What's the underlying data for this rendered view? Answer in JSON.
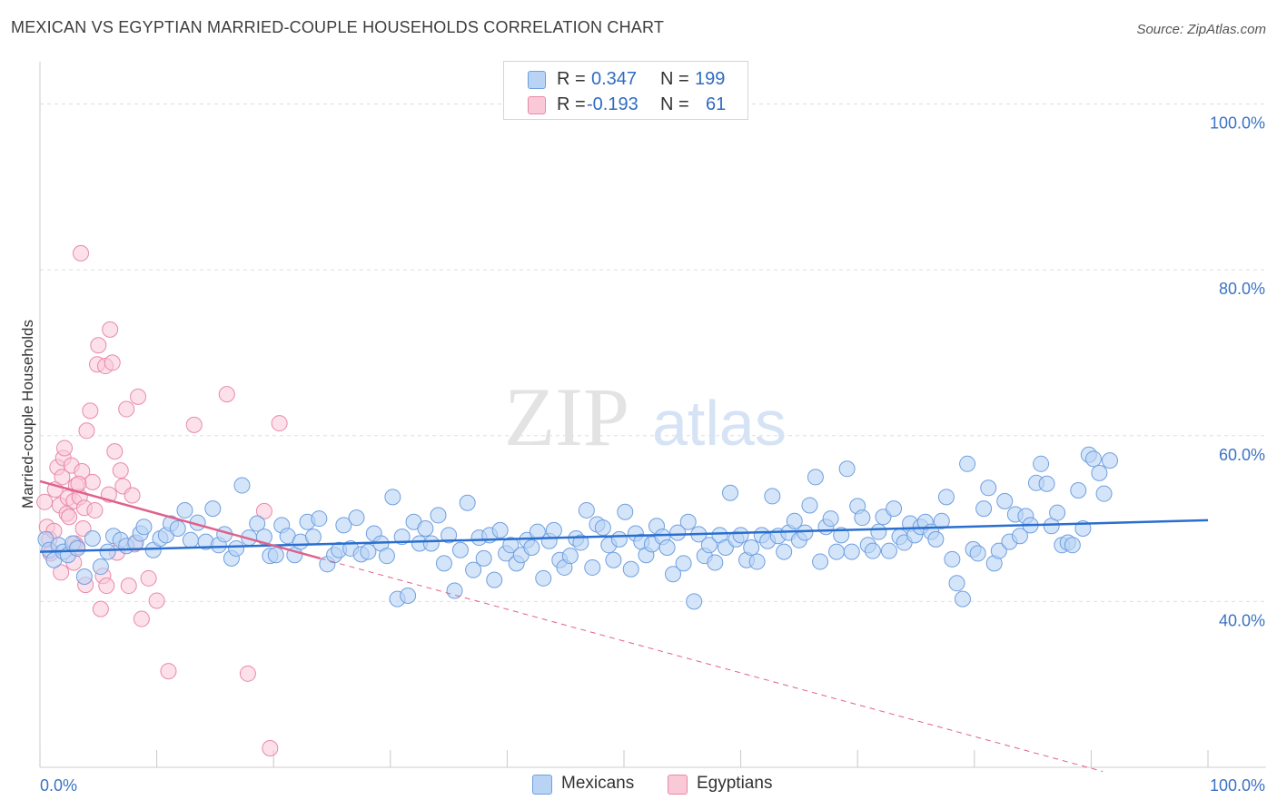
{
  "title": "MEXICAN VS EGYPTIAN MARRIED-COUPLE HOUSEHOLDS CORRELATION CHART",
  "source": "Source: ZipAtlas.com",
  "watermark": {
    "zip": "ZIP",
    "atlas": "atlas"
  },
  "colors": {
    "blue": "#6f9fe0",
    "blue_fill": "#b9d3f5",
    "blue_line": "#2a6fcf",
    "pink": "#e98aa8",
    "pink_fill": "#f9c9d8",
    "pink_line": "#e0628b",
    "grid": "#dedede",
    "axis_text": "#3b73c4"
  },
  "legend": {
    "rows": [
      {
        "r_label": "R =",
        "r_value": "0.347",
        "n_label": "N =",
        "n_value": "199",
        "series": "Mexicans"
      },
      {
        "r_label": "R =",
        "r_value": "-0.193",
        "n_label": "N =",
        "n_value": "61",
        "series": "Egyptians"
      }
    ]
  },
  "bottom_legend": {
    "mexicans": "Mexicans",
    "egyptians": "Egyptians"
  },
  "chart_data": {
    "type": "scatter",
    "title": "MEXICAN VS EGYPTIAN MARRIED-COUPLE HOUSEHOLDS CORRELATION CHART",
    "xlabel": "",
    "ylabel": "Married-couple Households",
    "xlim": [
      0,
      100
    ],
    "ylim": [
      20,
      104
    ],
    "x_tick_labels": [
      "0.0%",
      "100.0%"
    ],
    "y_ticks": [
      40,
      60,
      80,
      100
    ],
    "y_tick_labels": [
      "40.0%",
      "60.0%",
      "80.0%",
      "100.0%"
    ],
    "grid": true,
    "series": [
      {
        "name": "Mexicans",
        "trend": {
          "x": [
            0,
            100
          ],
          "y": [
            46.0,
            49.8
          ],
          "style": "solid"
        },
        "points": [
          [
            0.5,
            47.5
          ],
          [
            0.8,
            46.2
          ],
          [
            1.2,
            45.0
          ],
          [
            1.6,
            46.8
          ],
          [
            2.0,
            46.0
          ],
          [
            2.4,
            45.6
          ],
          [
            2.8,
            47.0
          ],
          [
            3.2,
            46.4
          ],
          [
            3.8,
            43.0
          ],
          [
            4.5,
            47.6
          ],
          [
            5.2,
            44.2
          ],
          [
            5.8,
            46.0
          ],
          [
            6.3,
            47.9
          ],
          [
            6.9,
            47.4
          ],
          [
            7.4,
            46.7
          ],
          [
            8.2,
            47.1
          ],
          [
            8.6,
            48.2
          ],
          [
            8.9,
            49.0
          ],
          [
            9.7,
            46.2
          ],
          [
            10.3,
            47.6
          ],
          [
            10.8,
            48.0
          ],
          [
            11.2,
            49.4
          ],
          [
            11.8,
            48.8
          ],
          [
            12.4,
            51.0
          ],
          [
            12.9,
            47.4
          ],
          [
            13.5,
            49.5
          ],
          [
            14.2,
            47.2
          ],
          [
            14.8,
            51.2
          ],
          [
            15.3,
            46.8
          ],
          [
            15.8,
            48.1
          ],
          [
            16.4,
            45.2
          ],
          [
            16.8,
            46.4
          ],
          [
            17.3,
            54.0
          ],
          [
            17.9,
            47.7
          ],
          [
            18.6,
            49.4
          ],
          [
            19.2,
            47.8
          ],
          [
            19.7,
            45.5
          ],
          [
            20.2,
            45.6
          ],
          [
            20.7,
            49.2
          ],
          [
            21.2,
            47.9
          ],
          [
            21.8,
            45.6
          ],
          [
            22.3,
            47.2
          ],
          [
            22.9,
            49.6
          ],
          [
            23.4,
            47.8
          ],
          [
            23.9,
            50.0
          ],
          [
            24.6,
            44.5
          ],
          [
            25.2,
            45.6
          ],
          [
            25.6,
            46.2
          ],
          [
            26.0,
            49.2
          ],
          [
            26.6,
            46.4
          ],
          [
            27.1,
            50.1
          ],
          [
            27.5,
            45.7
          ],
          [
            28.1,
            46.0
          ],
          [
            28.6,
            48.2
          ],
          [
            29.2,
            47.0
          ],
          [
            29.7,
            45.5
          ],
          [
            30.2,
            52.6
          ],
          [
            30.6,
            40.3
          ],
          [
            31.0,
            47.8
          ],
          [
            31.5,
            40.7
          ],
          [
            32.0,
            49.6
          ],
          [
            32.5,
            47.0
          ],
          [
            33.0,
            48.8
          ],
          [
            33.5,
            47.0
          ],
          [
            34.1,
            50.4
          ],
          [
            34.6,
            44.6
          ],
          [
            35.0,
            48.0
          ],
          [
            35.5,
            41.3
          ],
          [
            36.0,
            46.2
          ],
          [
            36.6,
            51.9
          ],
          [
            37.1,
            43.8
          ],
          [
            37.6,
            47.7
          ],
          [
            38.0,
            45.2
          ],
          [
            38.5,
            48.0
          ],
          [
            38.9,
            42.6
          ],
          [
            39.4,
            48.6
          ],
          [
            39.9,
            45.8
          ],
          [
            40.3,
            46.8
          ],
          [
            40.8,
            44.6
          ],
          [
            41.2,
            45.6
          ],
          [
            41.7,
            47.4
          ],
          [
            42.1,
            46.5
          ],
          [
            42.6,
            48.4
          ],
          [
            43.1,
            42.8
          ],
          [
            43.6,
            47.3
          ],
          [
            44.0,
            48.6
          ],
          [
            44.5,
            45.0
          ],
          [
            44.9,
            44.1
          ],
          [
            45.4,
            45.5
          ],
          [
            45.9,
            47.6
          ],
          [
            46.3,
            47.1
          ],
          [
            46.8,
            51.0
          ],
          [
            47.3,
            44.1
          ],
          [
            47.7,
            49.3
          ],
          [
            48.2,
            48.9
          ],
          [
            48.7,
            46.8
          ],
          [
            49.1,
            45.0
          ],
          [
            49.6,
            47.5
          ],
          [
            50.1,
            50.8
          ],
          [
            50.6,
            43.9
          ],
          [
            51.0,
            48.2
          ],
          [
            51.5,
            47.2
          ],
          [
            51.9,
            45.6
          ],
          [
            52.4,
            46.9
          ],
          [
            52.8,
            49.1
          ],
          [
            53.3,
            47.8
          ],
          [
            53.7,
            46.5
          ],
          [
            54.2,
            43.3
          ],
          [
            54.6,
            48.3
          ],
          [
            55.1,
            44.6
          ],
          [
            55.5,
            49.6
          ],
          [
            56.0,
            40.0
          ],
          [
            56.4,
            48.1
          ],
          [
            56.9,
            45.5
          ],
          [
            57.3,
            46.8
          ],
          [
            57.8,
            44.7
          ],
          [
            58.2,
            48.0
          ],
          [
            58.7,
            46.5
          ],
          [
            59.1,
            53.1
          ],
          [
            59.6,
            47.5
          ],
          [
            60.0,
            48.0
          ],
          [
            60.5,
            45.0
          ],
          [
            60.9,
            46.5
          ],
          [
            61.4,
            44.8
          ],
          [
            61.8,
            48.0
          ],
          [
            62.3,
            47.3
          ],
          [
            62.7,
            52.7
          ],
          [
            63.2,
            47.9
          ],
          [
            63.7,
            46.0
          ],
          [
            64.1,
            48.3
          ],
          [
            64.6,
            49.7
          ],
          [
            65.0,
            47.4
          ],
          [
            65.5,
            48.3
          ],
          [
            65.9,
            51.6
          ],
          [
            66.4,
            55.0
          ],
          [
            66.8,
            44.8
          ],
          [
            67.3,
            49.0
          ],
          [
            67.7,
            50.0
          ],
          [
            68.2,
            46.0
          ],
          [
            68.6,
            48.0
          ],
          [
            69.1,
            56.0
          ],
          [
            69.5,
            46.0
          ],
          [
            70.0,
            51.5
          ],
          [
            70.4,
            50.1
          ],
          [
            70.9,
            46.8
          ],
          [
            71.3,
            46.1
          ],
          [
            71.8,
            48.4
          ],
          [
            72.2,
            50.2
          ],
          [
            72.7,
            46.1
          ],
          [
            73.1,
            51.2
          ],
          [
            73.6,
            47.8
          ],
          [
            74.0,
            47.1
          ],
          [
            74.5,
            49.4
          ],
          [
            74.9,
            48.0
          ],
          [
            75.4,
            49.0
          ],
          [
            75.8,
            49.6
          ],
          [
            76.3,
            48.4
          ],
          [
            76.7,
            47.5
          ],
          [
            77.2,
            49.7
          ],
          [
            77.6,
            52.6
          ],
          [
            78.1,
            45.1
          ],
          [
            78.5,
            42.2
          ],
          [
            79.0,
            40.3
          ],
          [
            79.4,
            56.6
          ],
          [
            79.9,
            46.3
          ],
          [
            80.3,
            45.8
          ],
          [
            80.8,
            51.2
          ],
          [
            81.2,
            53.7
          ],
          [
            81.7,
            44.6
          ],
          [
            82.1,
            46.1
          ],
          [
            82.6,
            52.1
          ],
          [
            83.0,
            47.2
          ],
          [
            83.5,
            50.5
          ],
          [
            83.9,
            47.9
          ],
          [
            84.4,
            50.3
          ],
          [
            84.8,
            49.2
          ],
          [
            85.3,
            54.3
          ],
          [
            85.7,
            56.6
          ],
          [
            86.2,
            54.2
          ],
          [
            86.6,
            49.1
          ],
          [
            87.1,
            50.7
          ],
          [
            87.5,
            46.8
          ],
          [
            88.0,
            47.1
          ],
          [
            88.4,
            46.8
          ],
          [
            88.9,
            53.4
          ],
          [
            89.3,
            48.8
          ],
          [
            89.8,
            57.7
          ],
          [
            90.2,
            57.2
          ],
          [
            90.7,
            55.5
          ],
          [
            91.1,
            53.0
          ],
          [
            91.6,
            57.0
          ]
        ]
      },
      {
        "name": "Egyptians",
        "trend": {
          "x": [
            0,
            24
          ],
          "y": [
            54.5,
            45.2
          ],
          "style": "solid",
          "extended_dashed_to": {
            "x": 91,
            "y": 19.5
          }
        },
        "points": [
          [
            0.4,
            52.0
          ],
          [
            0.6,
            49.0
          ],
          [
            0.8,
            47.5
          ],
          [
            1.0,
            46.0
          ],
          [
            1.2,
            48.5
          ],
          [
            1.3,
            53.5
          ],
          [
            1.5,
            56.2
          ],
          [
            1.7,
            51.6
          ],
          [
            1.9,
            55.0
          ],
          [
            2.0,
            57.3
          ],
          [
            2.1,
            58.5
          ],
          [
            2.3,
            50.6
          ],
          [
            2.4,
            52.5
          ],
          [
            2.5,
            50.2
          ],
          [
            2.7,
            56.4
          ],
          [
            2.9,
            52.1
          ],
          [
            3.0,
            47.0
          ],
          [
            3.1,
            54.0
          ],
          [
            3.2,
            46.6
          ],
          [
            3.4,
            52.6
          ],
          [
            3.6,
            55.7
          ],
          [
            3.7,
            48.8
          ],
          [
            3.8,
            51.3
          ],
          [
            3.9,
            42.0
          ],
          [
            4.0,
            60.6
          ],
          [
            4.3,
            63.0
          ],
          [
            4.5,
            54.4
          ],
          [
            4.7,
            51.0
          ],
          [
            4.9,
            68.6
          ],
          [
            5.0,
            70.9
          ],
          [
            5.2,
            39.1
          ],
          [
            5.4,
            43.1
          ],
          [
            5.6,
            68.4
          ],
          [
            5.7,
            41.9
          ],
          [
            5.9,
            52.9
          ],
          [
            6.0,
            72.8
          ],
          [
            6.2,
            68.8
          ],
          [
            6.4,
            58.1
          ],
          [
            6.6,
            45.9
          ],
          [
            6.9,
            55.8
          ],
          [
            7.1,
            53.9
          ],
          [
            7.4,
            63.2
          ],
          [
            7.6,
            41.9
          ],
          [
            7.9,
            52.8
          ],
          [
            8.1,
            46.9
          ],
          [
            8.4,
            64.7
          ],
          [
            8.7,
            37.9
          ],
          [
            9.3,
            42.8
          ],
          [
            10.0,
            40.1
          ],
          [
            11.0,
            31.6
          ],
          [
            13.2,
            61.3
          ],
          [
            16.0,
            65.0
          ],
          [
            17.8,
            31.3
          ],
          [
            19.2,
            50.9
          ],
          [
            19.7,
            22.3
          ],
          [
            20.5,
            61.5
          ],
          [
            3.5,
            82.0
          ],
          [
            3.3,
            54.2
          ],
          [
            2.9,
            44.7
          ],
          [
            1.8,
            43.5
          ],
          [
            0.9,
            45.8
          ]
        ]
      }
    ]
  }
}
